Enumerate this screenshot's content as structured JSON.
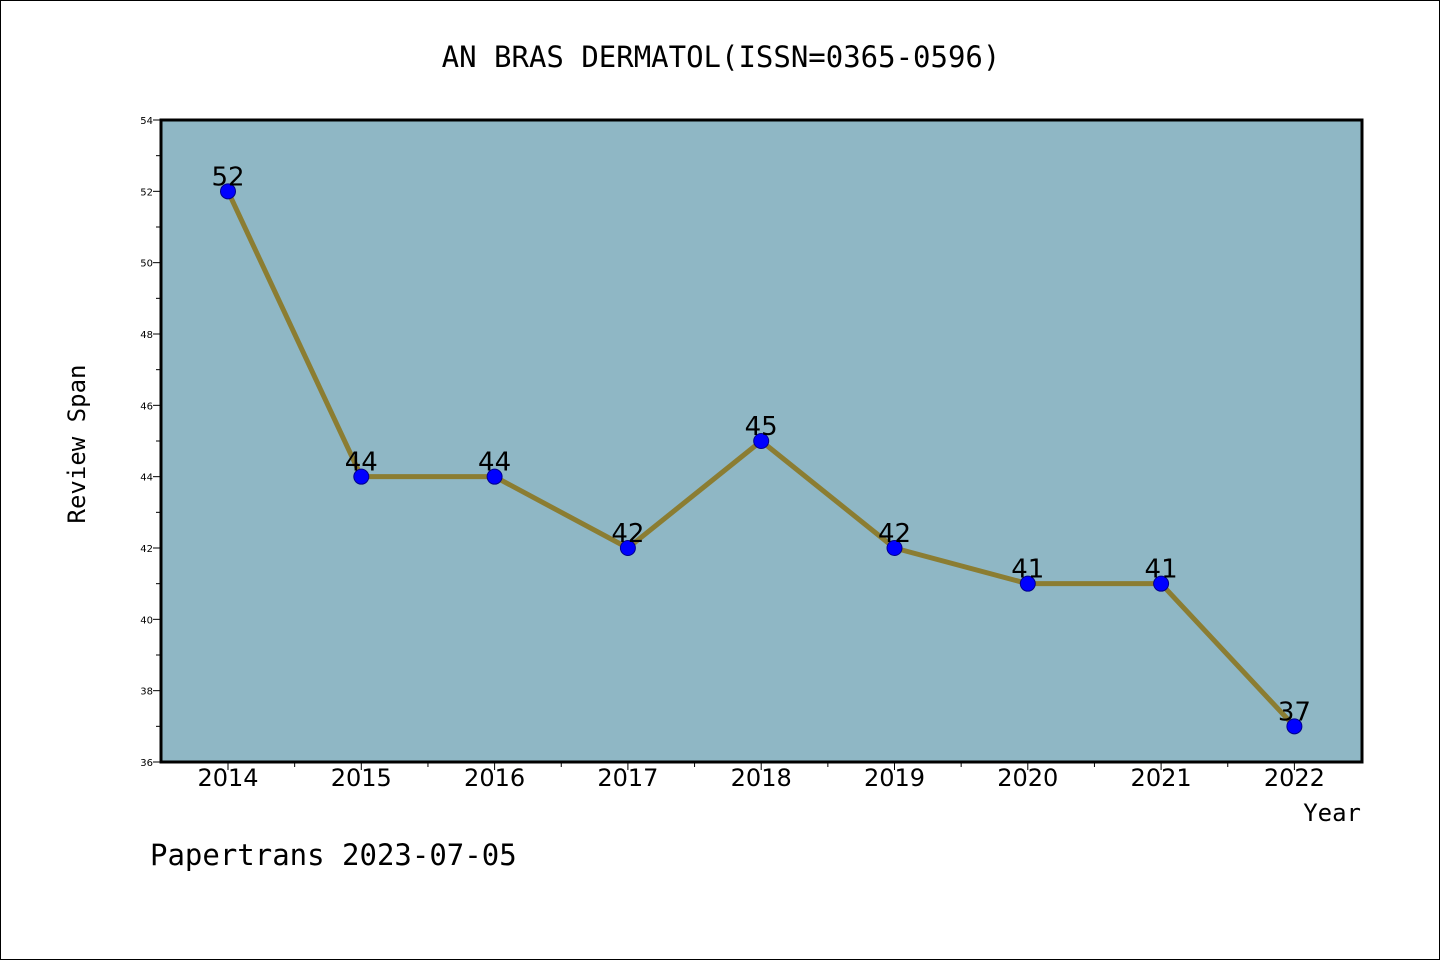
{
  "chart_data": {
    "type": "line",
    "title": "AN BRAS DERMATOL(ISSN=0365-0596)",
    "xlabel": "Year",
    "ylabel": "Review Span",
    "categories": [
      "2014",
      "2015",
      "2016",
      "2017",
      "2018",
      "2019",
      "2020",
      "2021",
      "2022"
    ],
    "values": [
      52,
      44,
      44,
      42,
      45,
      42,
      41,
      41,
      37
    ],
    "ylim": [
      36,
      54
    ],
    "yticks": [
      36,
      38,
      40,
      42,
      44,
      46,
      48,
      50,
      52,
      54
    ],
    "grid": false,
    "legend": "none",
    "colors": {
      "plot_background": "#8fb7c5",
      "line": "#8b7d32",
      "marker_fill": "#0000ff",
      "marker_edge": "#00008b"
    }
  },
  "footer": {
    "watermark": "Papertrans 2023-07-05"
  }
}
